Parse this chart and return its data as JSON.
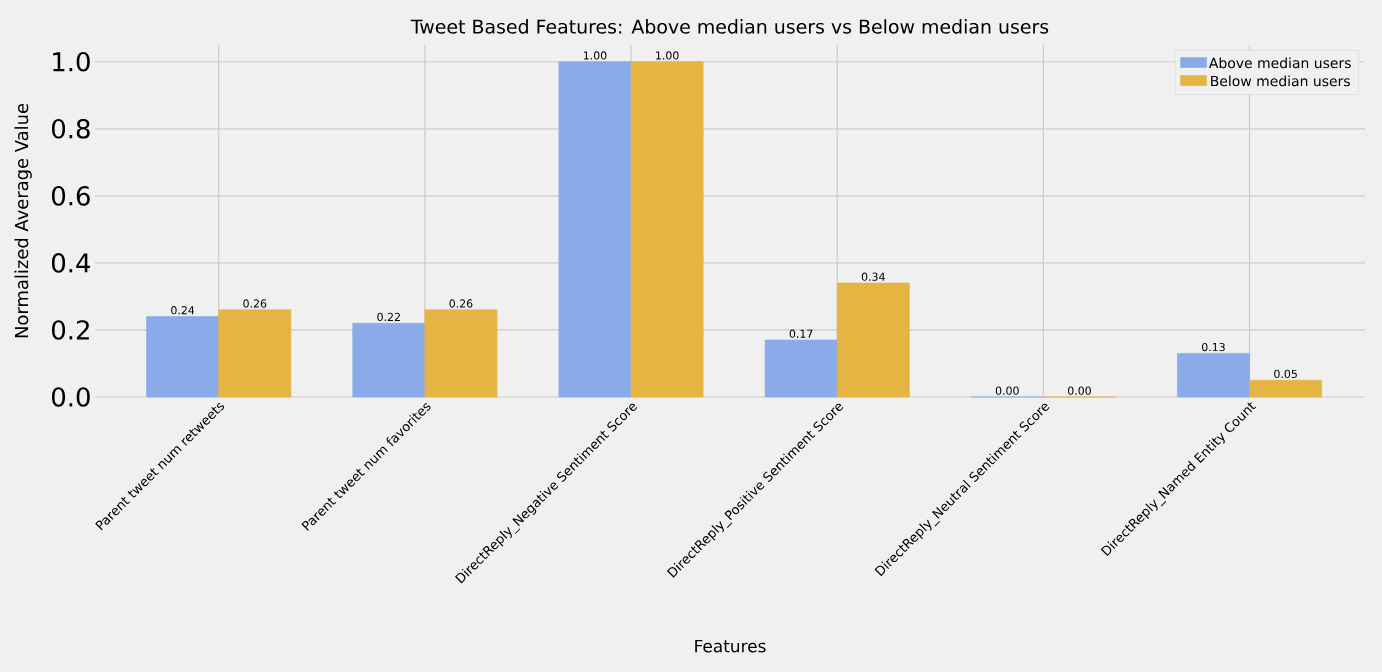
{
  "chart_data": {
    "type": "bar",
    "title": "Tweet Based Features: Above median users vs Below median users",
    "xlabel": "Features",
    "ylabel": "Normalized Average Value",
    "categories": [
      "Parent tweet num retweets",
      "Parent tweet num favorites",
      "DirectReply_Negative Sentiment Score",
      "DirectReply_Positive Sentiment Score",
      "DirectReply_Neutral Sentiment Score",
      "DirectReply_Named Entity Count"
    ],
    "series": [
      {
        "name": "Above median users",
        "color": "#8aabea",
        "values": [
          0.24,
          0.22,
          1.0,
          0.17,
          0.0,
          0.13
        ],
        "value_labels": [
          "0.24",
          "0.22",
          "1.00",
          "0.17",
          "0.00",
          "0.13"
        ]
      },
      {
        "name": "Below median users",
        "color": "#e6b443",
        "values": [
          0.26,
          0.26,
          1.0,
          0.34,
          0.0,
          0.05
        ],
        "value_labels": [
          "0.26",
          "0.26",
          "1.00",
          "0.34",
          "0.00",
          "0.05"
        ]
      }
    ],
    "ylim": [
      0,
      1.05
    ],
    "yticks": [
      {
        "value": 0,
        "label": "0.0"
      },
      {
        "value": 0.2,
        "label": "0.2"
      },
      {
        "value": 0.4,
        "label": "0.4"
      },
      {
        "value": 0.6,
        "label": "0.6"
      },
      {
        "value": 0.8,
        "label": "0.8"
      },
      {
        "value": 1.0,
        "label": "1.0"
      }
    ],
    "grid": true,
    "legend": "top right"
  }
}
